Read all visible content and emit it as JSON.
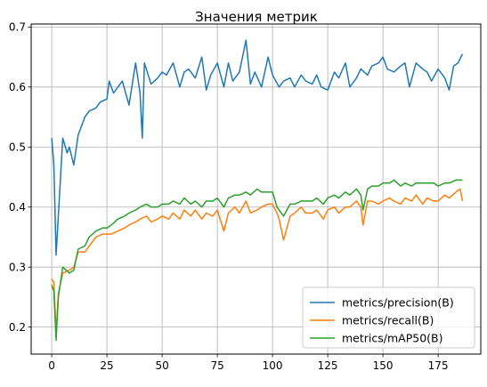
{
  "chart_data": {
    "type": "line",
    "title": "Значения метрик",
    "xlabel": "",
    "ylabel": "",
    "xlim": [
      -9.3,
      194.3
    ],
    "ylim": [
      0.155,
      0.705
    ],
    "x_ticks": [
      0,
      25,
      50,
      75,
      100,
      125,
      150,
      175
    ],
    "y_ticks": [
      0.2,
      0.3,
      0.4,
      0.5,
      0.6,
      0.7
    ],
    "x_tick_labels": [
      "0",
      "25",
      "50",
      "75",
      "100",
      "125",
      "150",
      "175"
    ],
    "y_tick_labels": [
      "0.2",
      "0.3",
      "0.4",
      "0.5",
      "0.6",
      "0.7"
    ],
    "grid": true,
    "legend_position": "lower-right",
    "series": [
      {
        "name": "metrics/precision(B)",
        "color": "#1f77b4",
        "x": [
          0,
          1,
          2,
          4,
          5,
          7,
          8,
          10,
          12,
          15,
          17,
          20,
          22,
          25,
          26,
          28,
          30,
          32,
          35,
          38,
          40,
          41,
          42,
          45,
          48,
          50,
          52,
          55,
          58,
          60,
          62,
          65,
          68,
          70,
          72,
          75,
          78,
          80,
          82,
          85,
          88,
          90,
          92,
          95,
          98,
          100,
          103,
          105,
          108,
          110,
          113,
          115,
          118,
          120,
          122,
          125,
          128,
          130,
          133,
          135,
          138,
          140,
          143,
          145,
          148,
          150,
          152,
          155,
          158,
          160,
          162,
          165,
          168,
          170,
          172,
          175,
          178,
          180,
          182,
          184,
          186
        ],
        "y": [
          0.515,
          0.47,
          0.32,
          0.45,
          0.515,
          0.49,
          0.5,
          0.47,
          0.52,
          0.55,
          0.56,
          0.565,
          0.575,
          0.58,
          0.61,
          0.59,
          0.6,
          0.61,
          0.57,
          0.64,
          0.59,
          0.515,
          0.64,
          0.605,
          0.615,
          0.625,
          0.62,
          0.64,
          0.6,
          0.625,
          0.63,
          0.615,
          0.65,
          0.595,
          0.62,
          0.64,
          0.6,
          0.64,
          0.61,
          0.625,
          0.678,
          0.605,
          0.625,
          0.6,
          0.65,
          0.62,
          0.6,
          0.61,
          0.615,
          0.6,
          0.62,
          0.61,
          0.605,
          0.62,
          0.6,
          0.595,
          0.625,
          0.615,
          0.64,
          0.6,
          0.615,
          0.63,
          0.62,
          0.635,
          0.64,
          0.65,
          0.63,
          0.625,
          0.635,
          0.64,
          0.6,
          0.64,
          0.63,
          0.625,
          0.61,
          0.63,
          0.615,
          0.595,
          0.635,
          0.64,
          0.655
        ]
      },
      {
        "name": "metrics/recall(B)",
        "color": "#ff7f0e",
        "x": [
          0,
          1,
          2,
          3,
          5,
          8,
          10,
          12,
          15,
          17,
          20,
          23,
          25,
          27,
          30,
          33,
          35,
          38,
          40,
          43,
          45,
          48,
          50,
          53,
          55,
          58,
          60,
          63,
          65,
          68,
          70,
          73,
          75,
          78,
          80,
          83,
          85,
          88,
          90,
          93,
          95,
          98,
          100,
          102,
          103,
          105,
          108,
          110,
          113,
          115,
          118,
          120,
          123,
          125,
          128,
          130,
          133,
          135,
          138,
          140,
          141,
          143,
          145,
          148,
          150,
          153,
          155,
          158,
          160,
          163,
          165,
          168,
          170,
          173,
          175,
          178,
          180,
          183,
          185,
          186
        ],
        "y": [
          0.28,
          0.275,
          0.19,
          0.255,
          0.29,
          0.295,
          0.3,
          0.325,
          0.325,
          0.335,
          0.35,
          0.355,
          0.355,
          0.355,
          0.36,
          0.365,
          0.37,
          0.375,
          0.38,
          0.385,
          0.375,
          0.38,
          0.385,
          0.38,
          0.39,
          0.38,
          0.395,
          0.385,
          0.395,
          0.38,
          0.39,
          0.385,
          0.395,
          0.36,
          0.39,
          0.4,
          0.39,
          0.41,
          0.39,
          0.395,
          0.4,
          0.405,
          0.405,
          0.39,
          0.38,
          0.345,
          0.385,
          0.39,
          0.4,
          0.39,
          0.39,
          0.395,
          0.38,
          0.395,
          0.4,
          0.39,
          0.4,
          0.4,
          0.41,
          0.4,
          0.37,
          0.41,
          0.41,
          0.405,
          0.41,
          0.415,
          0.41,
          0.405,
          0.415,
          0.41,
          0.42,
          0.405,
          0.415,
          0.41,
          0.41,
          0.42,
          0.415,
          0.425,
          0.43,
          0.41
        ]
      },
      {
        "name": "metrics/mAP50(B)",
        "color": "#2ca02c",
        "x": [
          0,
          1,
          2,
          3,
          5,
          8,
          10,
          12,
          15,
          17,
          20,
          23,
          25,
          27,
          30,
          33,
          35,
          38,
          40,
          43,
          45,
          48,
          50,
          53,
          55,
          58,
          60,
          63,
          65,
          68,
          70,
          73,
          75,
          78,
          80,
          83,
          85,
          88,
          90,
          93,
          95,
          98,
          100,
          102,
          103,
          105,
          108,
          110,
          113,
          115,
          118,
          120,
          123,
          125,
          128,
          130,
          133,
          135,
          138,
          140,
          141,
          143,
          145,
          148,
          150,
          153,
          155,
          158,
          160,
          163,
          165,
          168,
          170,
          173,
          175,
          178,
          180,
          183,
          185,
          186
        ],
        "y": [
          0.27,
          0.26,
          0.178,
          0.25,
          0.3,
          0.29,
          0.295,
          0.33,
          0.335,
          0.35,
          0.36,
          0.365,
          0.365,
          0.37,
          0.38,
          0.385,
          0.39,
          0.395,
          0.4,
          0.405,
          0.4,
          0.4,
          0.405,
          0.405,
          0.41,
          0.405,
          0.415,
          0.405,
          0.41,
          0.4,
          0.41,
          0.41,
          0.415,
          0.4,
          0.415,
          0.42,
          0.42,
          0.425,
          0.42,
          0.43,
          0.425,
          0.425,
          0.425,
          0.4,
          0.395,
          0.385,
          0.405,
          0.405,
          0.41,
          0.41,
          0.41,
          0.415,
          0.405,
          0.415,
          0.42,
          0.415,
          0.425,
          0.42,
          0.43,
          0.42,
          0.395,
          0.43,
          0.435,
          0.435,
          0.44,
          0.44,
          0.445,
          0.435,
          0.44,
          0.435,
          0.44,
          0.44,
          0.44,
          0.44,
          0.435,
          0.44,
          0.44,
          0.445,
          0.445,
          0.445
        ]
      }
    ]
  }
}
